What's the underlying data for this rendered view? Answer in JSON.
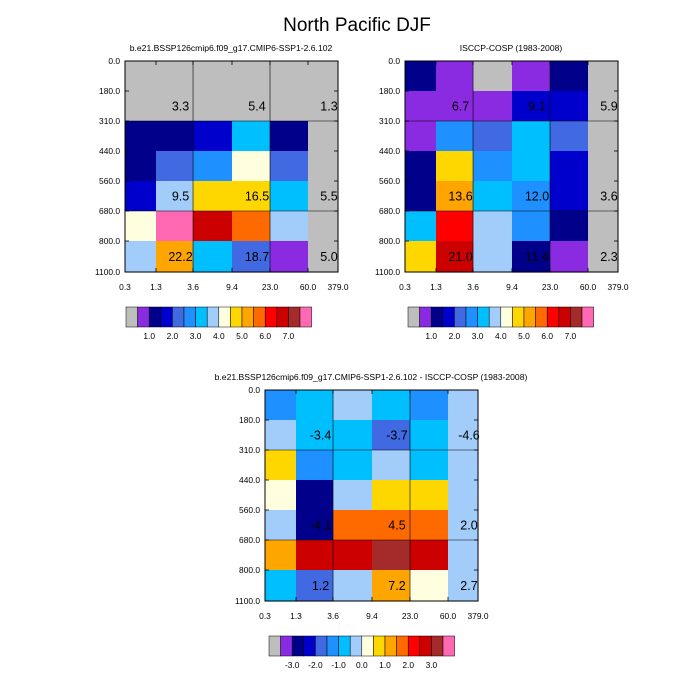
{
  "title": "North Pacific DJF",
  "palette": [
    "#bebebe",
    "#8a2be2",
    "#00008b",
    "#0000cd",
    "#4169e1",
    "#1e90ff",
    "#00bfff",
    "#a2cdfa",
    "#ffffe0",
    "#ffd700",
    "#ffa500",
    "#ff6a00",
    "#ff0000",
    "#cd0000",
    "#a52a2a",
    "#ff69b4"
  ],
  "chart_data": [
    {
      "id": "model",
      "type": "heatmap",
      "title": "b.e21.BSSP126cmip6.f09_g17.CMIP6-SSP1-2.6.102",
      "xlabel": "",
      "ylabel": "",
      "x_ticks": [
        "0.3",
        "1.3",
        "3.6",
        "9.4",
        "23.0",
        "60.0",
        "379.0"
      ],
      "y_ticks": [
        "0.0",
        "180.0",
        "310.0",
        "440.0",
        "560.0",
        "680.0",
        "800.0",
        "1100.0"
      ],
      "cells": [
        [
          0,
          0,
          0,
          0,
          0,
          0
        ],
        [
          0,
          0,
          0,
          0,
          0,
          0
        ],
        [
          2,
          2,
          3,
          6,
          2,
          0
        ],
        [
          2,
          4,
          5,
          8,
          4,
          0
        ],
        [
          3,
          7,
          9,
          9,
          6,
          0
        ],
        [
          8,
          15,
          13,
          11,
          7,
          0
        ],
        [
          7,
          10,
          6,
          4,
          1,
          0
        ]
      ],
      "region_labels": [
        {
          "text": "3.3",
          "col": 1,
          "row": 1
        },
        {
          "text": "5.4",
          "col": 3,
          "row": 1
        },
        {
          "text": "1.3",
          "col": 5,
          "row": 1
        },
        {
          "text": "9.5",
          "col": 1,
          "row": 4
        },
        {
          "text": "16.5",
          "col": 3,
          "row": 4
        },
        {
          "text": "5.5",
          "col": 5,
          "row": 4
        },
        {
          "text": "22.2",
          "col": 1,
          "row": 6
        },
        {
          "text": "18.7",
          "col": 3,
          "row": 6
        },
        {
          "text": "5.0",
          "col": 5,
          "row": 6
        }
      ],
      "colorbar_labels": [
        "1.0",
        "2.0",
        "3.0",
        "4.0",
        "5.0",
        "6.0",
        "7.0"
      ]
    },
    {
      "id": "obs",
      "type": "heatmap",
      "title": "ISCCP-COSP (1983-2008)",
      "xlabel": "",
      "ylabel": "",
      "x_ticks": [
        "0.3",
        "1.3",
        "3.6",
        "9.4",
        "23.0",
        "60.0",
        "379.0"
      ],
      "y_ticks": [
        "0.0",
        "180.0",
        "310.0",
        "440.0",
        "560.0",
        "680.0",
        "800.0",
        "1100.0"
      ],
      "cells": [
        [
          2,
          1,
          0,
          1,
          2,
          0
        ],
        [
          1,
          1,
          1,
          3,
          3,
          0
        ],
        [
          1,
          5,
          4,
          6,
          4,
          0
        ],
        [
          2,
          9,
          5,
          6,
          3,
          0
        ],
        [
          2,
          10,
          6,
          5,
          3,
          0
        ],
        [
          6,
          12,
          7,
          5,
          2,
          0
        ],
        [
          9,
          13,
          7,
          2,
          1,
          0
        ]
      ],
      "region_labels": [
        {
          "text": "6.7",
          "col": 1,
          "row": 1
        },
        {
          "text": "9.1",
          "col": 3,
          "row": 1
        },
        {
          "text": "5.9",
          "col": 5,
          "row": 1
        },
        {
          "text": "13.6",
          "col": 1,
          "row": 4
        },
        {
          "text": "12.0",
          "col": 3,
          "row": 4
        },
        {
          "text": "3.6",
          "col": 5,
          "row": 4
        },
        {
          "text": "21.0",
          "col": 1,
          "row": 6
        },
        {
          "text": "11.4",
          "col": 3,
          "row": 6
        },
        {
          "text": "2.3",
          "col": 5,
          "row": 6
        }
      ],
      "colorbar_labels": [
        "1.0",
        "2.0",
        "3.0",
        "4.0",
        "5.0",
        "6.0",
        "7.0"
      ]
    },
    {
      "id": "diff",
      "type": "heatmap",
      "title": "b.e21.BSSP126cmip6.f09_g17.CMIP6-SSP1-2.6.102 - ISCCP-COSP (1983-2008)",
      "xlabel": "",
      "ylabel": "",
      "x_ticks": [
        "0.3",
        "1.3",
        "3.6",
        "9.4",
        "23.0",
        "60.0",
        "379.0"
      ],
      "y_ticks": [
        "0.0",
        "180.0",
        "310.0",
        "440.0",
        "560.0",
        "680.0",
        "800.0",
        "1100.0"
      ],
      "cells": [
        [
          5,
          6,
          7,
          6,
          5,
          7
        ],
        [
          7,
          6,
          6,
          4,
          6,
          7
        ],
        [
          9,
          5,
          6,
          7,
          6,
          7
        ],
        [
          8,
          2,
          7,
          9,
          9,
          7
        ],
        [
          7,
          2,
          11,
          11,
          11,
          7
        ],
        [
          10,
          13,
          13,
          14,
          13,
          7
        ],
        [
          6,
          4,
          7,
          10,
          8,
          7
        ]
      ],
      "region_labels": [
        {
          "text": "-3.4",
          "col": 1,
          "row": 1
        },
        {
          "text": "-3.7",
          "col": 3,
          "row": 1
        },
        {
          "text": "-4.6",
          "col": 5,
          "row": 1
        },
        {
          "text": "-4.1",
          "col": 1,
          "row": 4
        },
        {
          "text": "4.5",
          "col": 3,
          "row": 4
        },
        {
          "text": "2.0",
          "col": 5,
          "row": 4
        },
        {
          "text": "1.2",
          "col": 1,
          "row": 6
        },
        {
          "text": "7.2",
          "col": 3,
          "row": 6
        },
        {
          "text": "2.7",
          "col": 5,
          "row": 6
        }
      ],
      "colorbar_labels": [
        "-3.0",
        "-2.0",
        "-1.0",
        "0.0",
        "1.0",
        "2.0",
        "3.0"
      ]
    }
  ]
}
